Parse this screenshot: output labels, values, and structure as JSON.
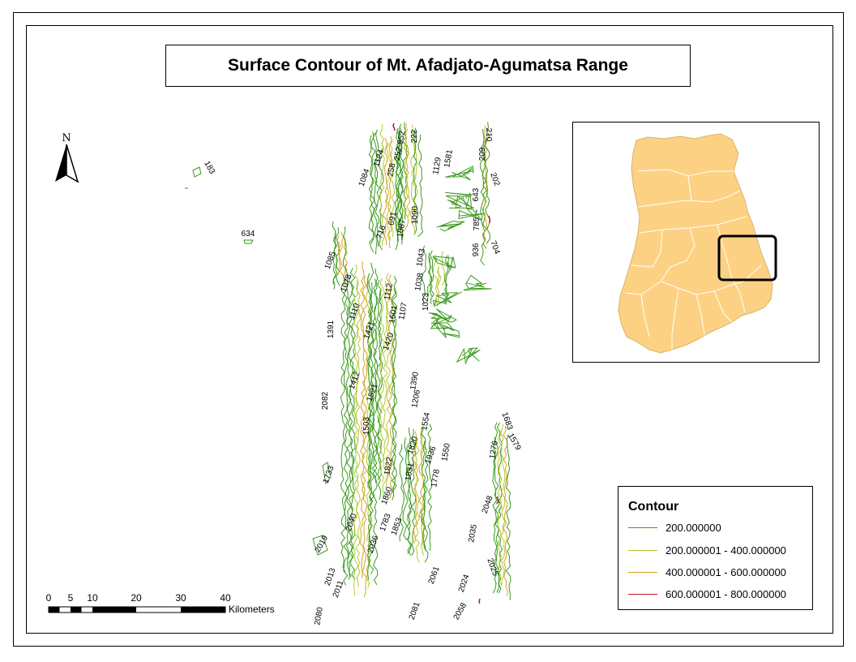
{
  "map": {
    "title": "Surface Contour of Mt. Afadjato-Agumatsa Range",
    "north_arrow_label": "N",
    "colors": {
      "class1": "#3a9a1e",
      "class2": "#b5c832",
      "class3": "#d9a21e",
      "class4": "#c8102e",
      "country_fill": "#fdd183",
      "region_lines": "#ffffff",
      "highlight": "#000000"
    },
    "legend": {
      "title": "Contour",
      "items": [
        {
          "label": "200.000000",
          "color": "#3a9a1e"
        },
        {
          "label": "200.000001 - 400.000000",
          "color": "#b5c832"
        },
        {
          "label": "400.000001 - 600.000000",
          "color": "#d9a21e"
        },
        {
          "label": "600.000001 - 800.000000",
          "color": "#c8102e"
        }
      ]
    },
    "scalebar": {
      "ticks": [
        "0",
        "5",
        "10",
        "20",
        "30",
        "40"
      ],
      "unit": "Kilometers"
    },
    "contour_labels": [
      "183",
      "634",
      "1084",
      "1124",
      "1078",
      "1085",
      "1391",
      "1110",
      "1421",
      "1420",
      "1412",
      "1521",
      "1503",
      "2082",
      "1733",
      "2013",
      "2011",
      "2080",
      "2019",
      "2040",
      "2036",
      "1783",
      "1853",
      "1860",
      "1822",
      "1831",
      "1820",
      "1554",
      "1550",
      "1936",
      "1778",
      "1683",
      "1579",
      "1276",
      "2048",
      "2035",
      "2025",
      "2024",
      "2058",
      "2081",
      "2061",
      "210",
      "209",
      "202",
      "643",
      "785",
      "704",
      "936",
      "952",
      "222",
      "252",
      "258",
      "716",
      "691",
      "1087",
      "1090",
      "1043",
      "1038",
      "1390",
      "1206",
      "1112",
      "1601",
      "1107",
      "1023",
      "1129",
      "1581"
    ]
  }
}
